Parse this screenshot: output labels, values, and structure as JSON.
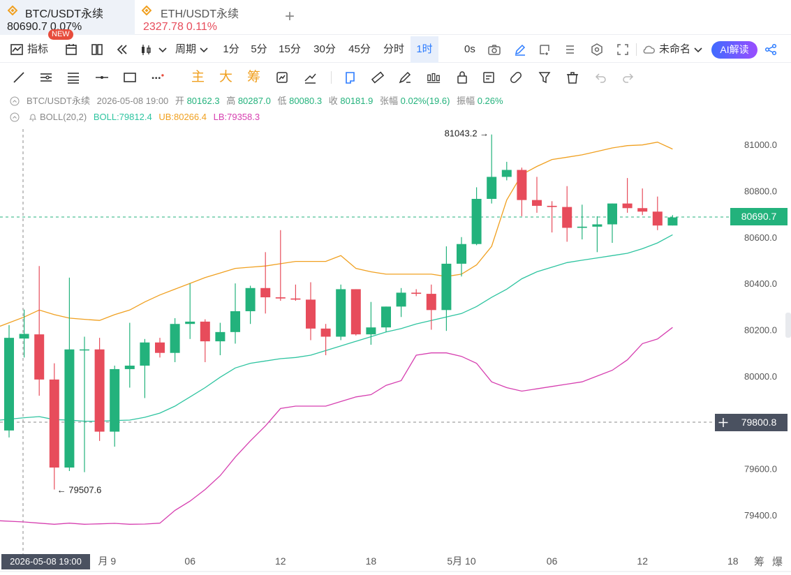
{
  "tabs": [
    {
      "name": "BTC/USDT永续",
      "price": "80690.7",
      "change": "0.07%",
      "badge": "NEW",
      "coin_icon": "btc-diamond-icon",
      "coin_color": "#f0a020"
    },
    {
      "name": "ETH/USDT永续",
      "price": "2327.78",
      "change": "0.11%",
      "coin_icon": "eth-diamond-icon",
      "coin_color": "#f0a020"
    }
  ],
  "toolbar": {
    "indicator_label": "指标",
    "period_label": "周期",
    "intervals": [
      "1分",
      "5分",
      "15分",
      "30分",
      "45分",
      "分时",
      "1时"
    ],
    "active_interval": "1时",
    "countdown": "0s",
    "layout_name": "未命名",
    "ai_label": "AI解读"
  },
  "toolbar2": {
    "text_tools": [
      "主",
      "大",
      "筹"
    ]
  },
  "info": {
    "symbol": "BTC/USDT永续",
    "datetime": "2026-05-08 19:00",
    "open_label": "开",
    "open": "80162.3",
    "high_label": "高",
    "high": "80287.0",
    "low_label": "低",
    "low": "80080.3",
    "close_label": "收",
    "close": "80181.9",
    "change_label": "张幅",
    "change": "0.02%(19.6)",
    "amp_label": "振幅",
    "amp": "0.26%",
    "boll_name": "BOLL(20,2)",
    "boll_mid": "BOLL:79812.4",
    "boll_ub": "UB:80266.4",
    "boll_lb": "LB:79358.3"
  },
  "colors": {
    "up": "#23b27c",
    "down": "#e74c5b",
    "ub": "#f0a020",
    "mid": "#2ec4a0",
    "lb": "#d63fb0",
    "accent": "#2b7bff"
  },
  "chart_data": {
    "type": "candlestick",
    "y_ticks": [
      "81000.0",
      "80800.0",
      "80600.0",
      "80400.0",
      "80200.0",
      "80000.0",
      "79600.0",
      "79400.0"
    ],
    "x_ticks": [
      {
        "i": 6.5,
        "label": "月 9"
      },
      {
        "i": 12,
        "label": "06"
      },
      {
        "i": 18,
        "label": "12"
      },
      {
        "i": 24,
        "label": "18"
      },
      {
        "i": 30,
        "label": "5月 10"
      },
      {
        "i": 36,
        "label": "06"
      },
      {
        "i": 42,
        "label": "12"
      },
      {
        "i": 48,
        "label": "18"
      }
    ],
    "current_price": "80690.7",
    "crosshair_price": "79800.8",
    "crosshair_time": "2026-05-08 19:00",
    "max_label": "81043.2",
    "min_label": "79507.6",
    "candles": [
      {
        "o": 79765,
        "h": 80220,
        "l": 79735,
        "c": 80165
      },
      {
        "o": 80162,
        "h": 80287,
        "l": 80080,
        "c": 80182
      },
      {
        "o": 80180,
        "h": 80475,
        "l": 79915,
        "c": 79985
      },
      {
        "o": 79985,
        "h": 80055,
        "l": 79510,
        "c": 79605
      },
      {
        "o": 79605,
        "h": 80425,
        "l": 79590,
        "c": 80115
      },
      {
        "o": 80115,
        "h": 80170,
        "l": 79585,
        "c": 80115
      },
      {
        "o": 80115,
        "h": 80165,
        "l": 79720,
        "c": 79760
      },
      {
        "o": 79760,
        "h": 80045,
        "l": 79695,
        "c": 80030
      },
      {
        "o": 80030,
        "h": 80230,
        "l": 79950,
        "c": 80045
      },
      {
        "o": 80045,
        "h": 80160,
        "l": 79905,
        "c": 80145
      },
      {
        "o": 80145,
        "h": 80165,
        "l": 80080,
        "c": 80100
      },
      {
        "o": 80100,
        "h": 80250,
        "l": 80060,
        "c": 80225
      },
      {
        "o": 80225,
        "h": 80400,
        "l": 80160,
        "c": 80235
      },
      {
        "o": 80235,
        "h": 80245,
        "l": 80060,
        "c": 80150
      },
      {
        "o": 80150,
        "h": 80230,
        "l": 80090,
        "c": 80190
      },
      {
        "o": 80190,
        "h": 80400,
        "l": 80140,
        "c": 80280
      },
      {
        "o": 80280,
        "h": 80390,
        "l": 80225,
        "c": 80380
      },
      {
        "o": 80380,
        "h": 80535,
        "l": 80270,
        "c": 80340
      },
      {
        "o": 80340,
        "h": 80630,
        "l": 80325,
        "c": 80335
      },
      {
        "o": 80335,
        "h": 80395,
        "l": 80325,
        "c": 80330
      },
      {
        "o": 80330,
        "h": 80405,
        "l": 80155,
        "c": 80205
      },
      {
        "o": 80205,
        "h": 80225,
        "l": 80090,
        "c": 80170
      },
      {
        "o": 80170,
        "h": 80395,
        "l": 80155,
        "c": 80375
      },
      {
        "o": 80375,
        "h": 80375,
        "l": 80175,
        "c": 80180
      },
      {
        "o": 80180,
        "h": 80320,
        "l": 80135,
        "c": 80210
      },
      {
        "o": 80210,
        "h": 80300,
        "l": 80190,
        "c": 80300
      },
      {
        "o": 80300,
        "h": 80380,
        "l": 80255,
        "c": 80360
      },
      {
        "o": 80360,
        "h": 80375,
        "l": 80345,
        "c": 80355
      },
      {
        "o": 80355,
        "h": 80395,
        "l": 80200,
        "c": 80285
      },
      {
        "o": 80285,
        "h": 80560,
        "l": 80195,
        "c": 80485
      },
      {
        "o": 80485,
        "h": 80600,
        "l": 80430,
        "c": 80570
      },
      {
        "o": 80570,
        "h": 80815,
        "l": 80565,
        "c": 80765
      },
      {
        "o": 80765,
        "h": 81043,
        "l": 80745,
        "c": 80860
      },
      {
        "o": 80860,
        "h": 80925,
        "l": 80845,
        "c": 80890
      },
      {
        "o": 80890,
        "h": 80900,
        "l": 80690,
        "c": 80760
      },
      {
        "o": 80760,
        "h": 80860,
        "l": 80705,
        "c": 80735
      },
      {
        "o": 80735,
        "h": 80755,
        "l": 80620,
        "c": 80730
      },
      {
        "o": 80730,
        "h": 80820,
        "l": 80580,
        "c": 80640
      },
      {
        "o": 80640,
        "h": 80740,
        "l": 80590,
        "c": 80645
      },
      {
        "o": 80645,
        "h": 80690,
        "l": 80535,
        "c": 80655
      },
      {
        "o": 80655,
        "h": 80745,
        "l": 80575,
        "c": 80745
      },
      {
        "o": 80745,
        "h": 80855,
        "l": 80705,
        "c": 80725
      },
      {
        "o": 80725,
        "h": 80810,
        "l": 80695,
        "c": 80710
      },
      {
        "o": 80710,
        "h": 80775,
        "l": 80630,
        "c": 80650
      },
      {
        "o": 80650,
        "h": 80695,
        "l": 80650,
        "c": 80685
      }
    ],
    "boll_ub": [
      80215,
      80255,
      80285,
      80265,
      80250,
      80245,
      80240,
      80265,
      80285,
      80320,
      80350,
      80375,
      80400,
      80425,
      80445,
      80465,
      80470,
      80475,
      80485,
      80495,
      80495,
      80495,
      80520,
      80465,
      80450,
      80440,
      80440,
      80440,
      80440,
      80430,
      80440,
      80480,
      80560,
      80760,
      80870,
      80905,
      80935,
      80945,
      80955,
      80970,
      80985,
      80995,
      80998,
      81010,
      80980
    ],
    "boll_mid": [
      79810,
      79820,
      79825,
      79812,
      79810,
      79805,
      79805,
      79808,
      79810,
      79822,
      79840,
      79870,
      79910,
      79950,
      79995,
      80035,
      80055,
      80065,
      80075,
      80080,
      80090,
      80110,
      80130,
      80150,
      80170,
      80190,
      80205,
      80225,
      80240,
      80255,
      80270,
      80300,
      80340,
      80375,
      80420,
      80450,
      80470,
      80490,
      80500,
      80510,
      80520,
      80530,
      80550,
      80575,
      80610
    ],
    "boll_lb": [
      79375,
      79370,
      79365,
      79360,
      79365,
      79360,
      79362,
      79364,
      79360,
      79361,
      79365,
      79420,
      79460,
      79510,
      79570,
      79650,
      79720,
      79785,
      79860,
      79870,
      79870,
      79870,
      79890,
      79910,
      79920,
      79960,
      79980,
      80090,
      80100,
      80100,
      80085,
      80055,
      79975,
      79950,
      79935,
      79945,
      79955,
      79965,
      79975,
      80000,
      80025,
      80070,
      80140,
      80160,
      80210
    ]
  }
}
